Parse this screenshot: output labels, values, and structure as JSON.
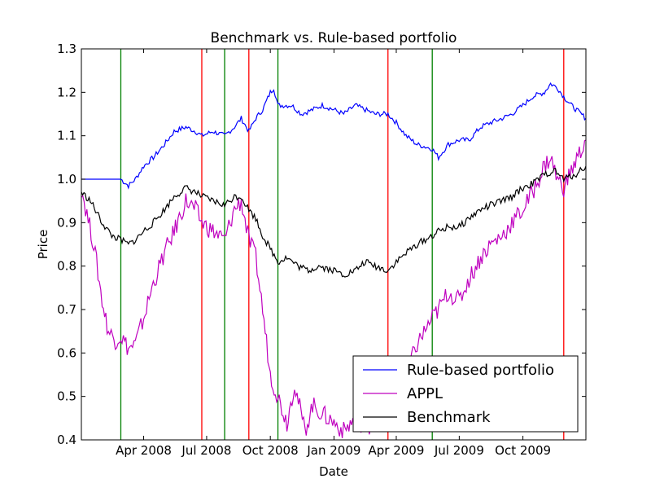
{
  "chart_data": {
    "type": "line",
    "title": "Benchmark vs. Rule-based portfolio",
    "xlabel": "Date",
    "ylabel": "Price",
    "ylim": [
      0.4,
      1.3
    ],
    "xlim": [
      "2008-01-02",
      "2009-12-31"
    ],
    "grid": false,
    "legend_position": "lower-right",
    "y_ticks": [
      "0.4",
      "0.5",
      "0.6",
      "0.7",
      "0.8",
      "0.9",
      "1.0",
      "1.1",
      "1.2",
      "1.3"
    ],
    "x_ticks": [
      {
        "label": "Apr 2008",
        "date": "2008-04-01"
      },
      {
        "label": "Jul 2008",
        "date": "2008-07-01"
      },
      {
        "label": "Oct 2008",
        "date": "2008-10-01"
      },
      {
        "label": "Jan 2009",
        "date": "2009-01-01"
      },
      {
        "label": "Apr 2009",
        "date": "2009-04-01"
      },
      {
        "label": "Jul 2009",
        "date": "2009-07-01"
      },
      {
        "label": "Oct 2009",
        "date": "2009-10-01"
      }
    ],
    "vertical_markers": [
      {
        "date": "2008-02-28",
        "color": "#008000"
      },
      {
        "date": "2008-06-24",
        "color": "#ff0000"
      },
      {
        "date": "2008-07-27",
        "color": "#008000"
      },
      {
        "date": "2008-08-31",
        "color": "#ff0000"
      },
      {
        "date": "2008-10-12",
        "color": "#008000"
      },
      {
        "date": "2009-03-20",
        "color": "#ff0000"
      },
      {
        "date": "2009-05-23",
        "color": "#008000"
      },
      {
        "date": "2009-11-29",
        "color": "#ff0000"
      }
    ],
    "series": [
      {
        "name": "Rule-based portfolio",
        "color": "#0000ff",
        "points": [
          [
            "2008-01-02",
            1.0
          ],
          [
            "2008-02-28",
            1.0
          ],
          [
            "2008-03-10",
            0.985
          ],
          [
            "2008-03-20",
            1.0
          ],
          [
            "2008-04-01",
            1.03
          ],
          [
            "2008-04-15",
            1.05
          ],
          [
            "2008-05-01",
            1.08
          ],
          [
            "2008-05-15",
            1.11
          ],
          [
            "2008-06-01",
            1.12
          ],
          [
            "2008-06-15",
            1.11
          ],
          [
            "2008-06-24",
            1.1
          ],
          [
            "2008-07-10",
            1.11
          ],
          [
            "2008-07-27",
            1.1
          ],
          [
            "2008-08-10",
            1.12
          ],
          [
            "2008-08-20",
            1.14
          ],
          [
            "2008-08-31",
            1.11
          ],
          [
            "2008-09-10",
            1.14
          ],
          [
            "2008-09-20",
            1.16
          ],
          [
            "2008-10-01",
            1.2
          ],
          [
            "2008-10-06",
            1.21
          ],
          [
            "2008-10-12",
            1.17
          ],
          [
            "2008-11-01",
            1.17
          ],
          [
            "2008-11-15",
            1.15
          ],
          [
            "2008-12-01",
            1.16
          ],
          [
            "2008-12-15",
            1.17
          ],
          [
            "2009-01-01",
            1.16
          ],
          [
            "2009-01-15",
            1.15
          ],
          [
            "2009-02-01",
            1.17
          ],
          [
            "2009-02-15",
            1.16
          ],
          [
            "2009-03-01",
            1.15
          ],
          [
            "2009-03-20",
            1.15
          ],
          [
            "2009-04-01",
            1.13
          ],
          [
            "2009-04-15",
            1.1
          ],
          [
            "2009-05-01",
            1.08
          ],
          [
            "2009-05-23",
            1.07
          ],
          [
            "2009-06-01",
            1.05
          ],
          [
            "2009-06-15",
            1.08
          ],
          [
            "2009-07-01",
            1.09
          ],
          [
            "2009-07-15",
            1.09
          ],
          [
            "2009-08-01",
            1.12
          ],
          [
            "2009-08-15",
            1.13
          ],
          [
            "2009-09-01",
            1.14
          ],
          [
            "2009-09-15",
            1.15
          ],
          [
            "2009-10-01",
            1.17
          ],
          [
            "2009-10-15",
            1.19
          ],
          [
            "2009-11-01",
            1.2
          ],
          [
            "2009-11-10",
            1.22
          ],
          [
            "2009-11-20",
            1.21
          ],
          [
            "2009-11-29",
            1.19
          ],
          [
            "2009-12-10",
            1.17
          ],
          [
            "2009-12-31",
            1.14
          ]
        ]
      },
      {
        "name": "APPL",
        "color": "#bf00bf",
        "points": [
          [
            "2008-01-02",
            0.98
          ],
          [
            "2008-01-10",
            0.92
          ],
          [
            "2008-01-20",
            0.85
          ],
          [
            "2008-02-01",
            0.72
          ],
          [
            "2008-02-10",
            0.65
          ],
          [
            "2008-02-20",
            0.63
          ],
          [
            "2008-02-28",
            0.64
          ],
          [
            "2008-03-10",
            0.61
          ],
          [
            "2008-03-20",
            0.62
          ],
          [
            "2008-04-01",
            0.68
          ],
          [
            "2008-04-15",
            0.76
          ],
          [
            "2008-05-01",
            0.83
          ],
          [
            "2008-05-15",
            0.88
          ],
          [
            "2008-06-01",
            0.95
          ],
          [
            "2008-06-15",
            0.93
          ],
          [
            "2008-06-24",
            0.9
          ],
          [
            "2008-07-10",
            0.88
          ],
          [
            "2008-07-27",
            0.86
          ],
          [
            "2008-08-10",
            0.93
          ],
          [
            "2008-08-20",
            0.95
          ],
          [
            "2008-08-31",
            0.86
          ],
          [
            "2008-09-10",
            0.82
          ],
          [
            "2008-09-20",
            0.7
          ],
          [
            "2008-10-01",
            0.55
          ],
          [
            "2008-10-12",
            0.5
          ],
          [
            "2008-10-25",
            0.44
          ],
          [
            "2008-11-05",
            0.53
          ],
          [
            "2008-11-20",
            0.42
          ],
          [
            "2008-12-01",
            0.48
          ],
          [
            "2008-12-15",
            0.46
          ],
          [
            "2009-01-01",
            0.44
          ],
          [
            "2009-01-15",
            0.42
          ],
          [
            "2009-02-01",
            0.45
          ],
          [
            "2009-02-15",
            0.43
          ],
          [
            "2009-03-01",
            0.44
          ],
          [
            "2009-03-20",
            0.45
          ],
          [
            "2009-04-01",
            0.5
          ],
          [
            "2009-04-15",
            0.55
          ],
          [
            "2009-05-01",
            0.62
          ],
          [
            "2009-05-23",
            0.68
          ],
          [
            "2009-06-01",
            0.7
          ],
          [
            "2009-06-15",
            0.74
          ],
          [
            "2009-07-01",
            0.72
          ],
          [
            "2009-07-15",
            0.77
          ],
          [
            "2009-08-01",
            0.82
          ],
          [
            "2009-08-15",
            0.85
          ],
          [
            "2009-09-01",
            0.87
          ],
          [
            "2009-09-15",
            0.9
          ],
          [
            "2009-10-01",
            0.93
          ],
          [
            "2009-10-15",
            0.97
          ],
          [
            "2009-11-01",
            1.03
          ],
          [
            "2009-11-10",
            1.05
          ],
          [
            "2009-11-20",
            1.0
          ],
          [
            "2009-11-29",
            0.98
          ],
          [
            "2009-12-10",
            1.02
          ],
          [
            "2009-12-31",
            1.09
          ]
        ]
      },
      {
        "name": "Benchmark",
        "color": "#000000",
        "points": [
          [
            "2008-01-02",
            0.97
          ],
          [
            "2008-01-15",
            0.95
          ],
          [
            "2008-02-01",
            0.9
          ],
          [
            "2008-02-15",
            0.87
          ],
          [
            "2008-02-28",
            0.86
          ],
          [
            "2008-03-10",
            0.85
          ],
          [
            "2008-03-20",
            0.86
          ],
          [
            "2008-04-01",
            0.88
          ],
          [
            "2008-04-15",
            0.9
          ],
          [
            "2008-05-01",
            0.93
          ],
          [
            "2008-05-15",
            0.96
          ],
          [
            "2008-06-01",
            0.98
          ],
          [
            "2008-06-15",
            0.97
          ],
          [
            "2008-06-24",
            0.96
          ],
          [
            "2008-07-10",
            0.95
          ],
          [
            "2008-07-27",
            0.94
          ],
          [
            "2008-08-10",
            0.96
          ],
          [
            "2008-08-20",
            0.96
          ],
          [
            "2008-08-31",
            0.93
          ],
          [
            "2008-09-10",
            0.91
          ],
          [
            "2008-09-20",
            0.87
          ],
          [
            "2008-10-01",
            0.84
          ],
          [
            "2008-10-12",
            0.81
          ],
          [
            "2008-10-25",
            0.82
          ],
          [
            "2008-11-10",
            0.8
          ],
          [
            "2008-11-25",
            0.79
          ],
          [
            "2008-12-10",
            0.8
          ],
          [
            "2009-01-01",
            0.79
          ],
          [
            "2009-01-15",
            0.78
          ],
          [
            "2009-02-01",
            0.79
          ],
          [
            "2009-02-15",
            0.81
          ],
          [
            "2009-03-01",
            0.8
          ],
          [
            "2009-03-20",
            0.79
          ],
          [
            "2009-04-01",
            0.81
          ],
          [
            "2009-04-15",
            0.83
          ],
          [
            "2009-05-01",
            0.85
          ],
          [
            "2009-05-23",
            0.87
          ],
          [
            "2009-06-01",
            0.88
          ],
          [
            "2009-06-15",
            0.89
          ],
          [
            "2009-07-01",
            0.89
          ],
          [
            "2009-07-15",
            0.91
          ],
          [
            "2009-08-01",
            0.93
          ],
          [
            "2009-08-15",
            0.94
          ],
          [
            "2009-09-01",
            0.95
          ],
          [
            "2009-09-15",
            0.96
          ],
          [
            "2009-10-01",
            0.98
          ],
          [
            "2009-10-15",
            0.99
          ],
          [
            "2009-11-01",
            1.01
          ],
          [
            "2009-11-15",
            1.02
          ],
          [
            "2009-11-29",
            1.0
          ],
          [
            "2009-12-15",
            1.01
          ],
          [
            "2009-12-31",
            1.03
          ]
        ]
      }
    ]
  }
}
